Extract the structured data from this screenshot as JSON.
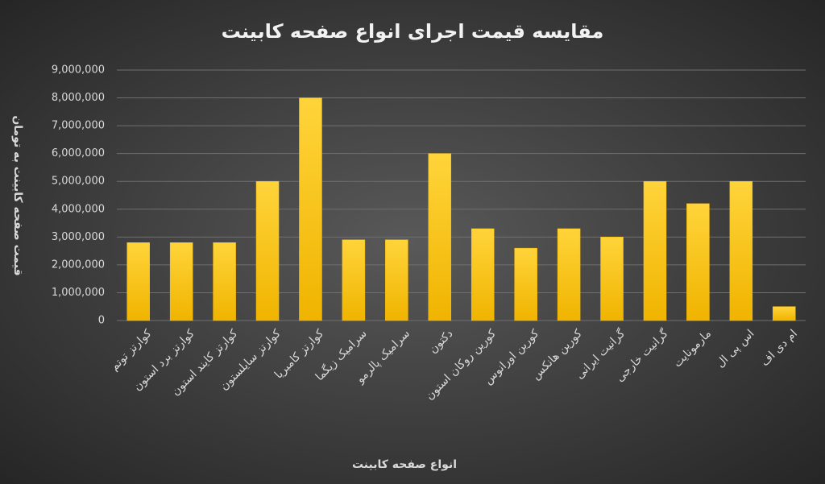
{
  "chart_data": {
    "type": "bar",
    "title": "مقایسه قیمت اجرای انواع صفحه کابینت",
    "y_label": "قیمت صفحه کابینت به تومان",
    "x_label": "انواع صفحه کابینت",
    "categories": [
      "کوارتز توتم",
      "کوارتز برد استون",
      "کوارتز کایند استون",
      "کوارتز سایلستون",
      "کوارتز کامبریا",
      "سرامیک زیگما",
      "سرامیک پالرمو",
      "دکتون",
      "کورین روکان استون",
      "کورین اورانوس",
      "کورین هانکس",
      "گرانیت ایرانی",
      "گرانیت خارجی",
      "مارمونایت",
      "اس پی ال",
      "ام دی اف"
    ],
    "values": [
      2800000,
      2800000,
      2800000,
      5000000,
      8000000,
      2900000,
      2900000,
      6000000,
      3300000,
      2600000,
      3300000,
      3000000,
      5000000,
      4200000,
      5000000,
      500000
    ],
    "color": "#ffc000",
    "ylim": [
      0,
      9000000
    ],
    "yticks": [
      0,
      {
        "value": 1000000,
        "label": "1,000,000"
      },
      {
        "value": 2000000,
        "label": "2,000,000"
      },
      {
        "value": 3000000,
        "label": "3,000,000"
      },
      {
        "value": 4000000,
        "label": "4,000,000"
      },
      {
        "value": 5000000,
        "label": "5,000,000"
      },
      {
        "value": 6000000,
        "label": "6,000,000"
      },
      {
        "value": 7000000,
        "label": "7,000,000"
      },
      {
        "value": 8000000,
        "label": "8,000,000"
      },
      {
        "value": 9000000,
        "label": "9,000,000"
      }
    ],
    "grid": true
  }
}
